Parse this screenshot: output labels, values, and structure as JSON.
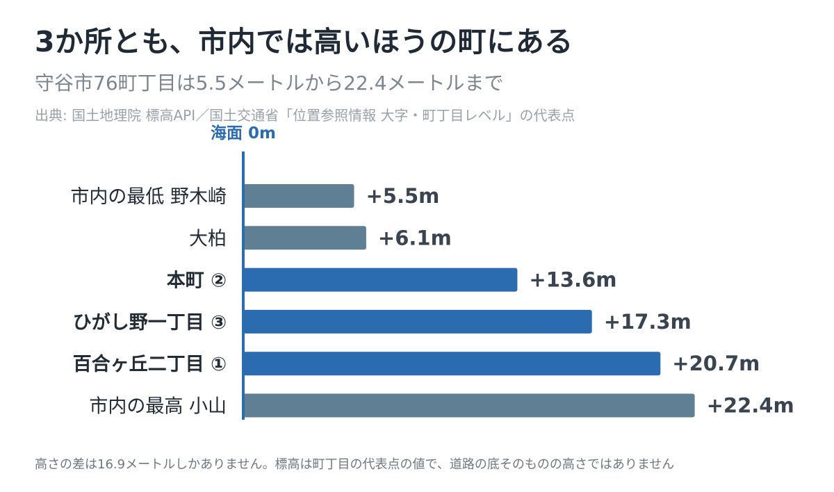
{
  "title": "3か所とも、市内では高いほうの町にある",
  "subtitle": "守谷市76町丁目は5.5メートルから22.4メートルまで",
  "source": "出典: 国土地理院 標高API／国土交通省「位置参照情報 大字・町丁目レベル」の代表点",
  "footnote": "高さの差は16.9メートルしかありません。標高は町丁目の代表点の値で、道路の底そのものの高さではありません",
  "colors": {
    "highlight": "#2b6cb0",
    "normal": "#5f7f95",
    "axis": "#2b6cb0"
  },
  "chart_data": {
    "type": "bar",
    "orientation": "horizontal",
    "axis_label": "海面 0m",
    "xlim": [
      0,
      24.5
    ],
    "categories": [
      "市内の最低 野木崎",
      "大柏",
      "本町 ②",
      "ひがし野一丁目 ③",
      "百合ヶ丘二丁目 ①",
      "市内の最高 小山"
    ],
    "values": [
      5.5,
      6.1,
      13.6,
      17.3,
      20.7,
      22.4
    ],
    "value_labels": [
      "+5.5m",
      "+6.1m",
      "+13.6m",
      "+17.3m",
      "+20.7m",
      "+22.4m"
    ],
    "highlighted": [
      false,
      false,
      true,
      true,
      true,
      false
    ]
  }
}
